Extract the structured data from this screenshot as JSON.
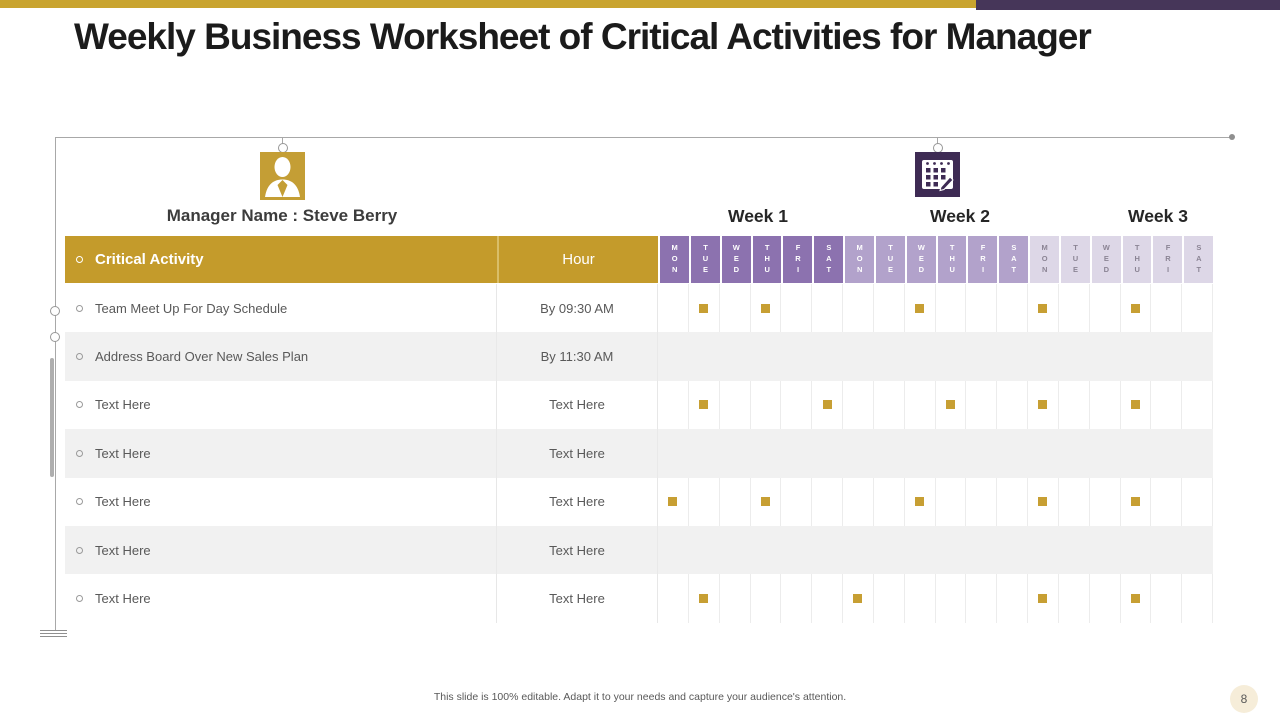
{
  "title": "Weekly Business Worksheet of Critical Activities for Manager",
  "manager": {
    "label": "Manager Name : Steve Berry",
    "icon": "person-icon"
  },
  "schedule_icon": "calendar-icon",
  "weeks": [
    "Week 1",
    "Week 2",
    "Week 3"
  ],
  "days": [
    "MON",
    "TUE",
    "WED",
    "THU",
    "FRI",
    "SAT"
  ],
  "table": {
    "columns": {
      "activity": "Critical Activity",
      "hour": "Hour"
    },
    "rows": [
      {
        "activity": "Team Meet Up For Day Schedule",
        "hour": "By 09:30 AM",
        "marks": [
          {
            "week": 1,
            "day": "TUE"
          },
          {
            "week": 1,
            "day": "THU"
          },
          {
            "week": 2,
            "day": "WED"
          },
          {
            "week": 3,
            "day": "MON"
          },
          {
            "week": 3,
            "day": "THU"
          }
        ]
      },
      {
        "activity": "Address Board Over New Sales Plan",
        "hour": "By 11:30 AM",
        "marks": []
      },
      {
        "activity": "Text Here",
        "hour": "Text Here",
        "marks": [
          {
            "week": 1,
            "day": "TUE"
          },
          {
            "week": 1,
            "day": "SAT"
          },
          {
            "week": 2,
            "day": "THU"
          },
          {
            "week": 3,
            "day": "MON"
          },
          {
            "week": 3,
            "day": "THU"
          }
        ]
      },
      {
        "activity": "Text Here",
        "hour": "Text Here",
        "marks": []
      },
      {
        "activity": "Text Here",
        "hour": "Text Here",
        "marks": [
          {
            "week": 1,
            "day": "MON"
          },
          {
            "week": 1,
            "day": "THU"
          },
          {
            "week": 2,
            "day": "WED"
          },
          {
            "week": 3,
            "day": "MON"
          },
          {
            "week": 3,
            "day": "THU"
          }
        ]
      },
      {
        "activity": "Text Here",
        "hour": "Text Here",
        "marks": []
      },
      {
        "activity": "Text Here",
        "hour": "Text Here",
        "marks": [
          {
            "week": 1,
            "day": "TUE"
          },
          {
            "week": 2,
            "day": "MON"
          },
          {
            "week": 3,
            "day": "MON"
          },
          {
            "week": 3,
            "day": "THU"
          }
        ]
      }
    ]
  },
  "footer": {
    "note": "This slide is 100% editable. Adapt it to your needs and capture your audience's attention.",
    "page_number": "8"
  },
  "icons": {
    "manager": "person-icon",
    "schedule": "calendar-icon",
    "row_bullet": "circle-outline-icon",
    "presence_mark": "filled-square"
  },
  "colors": {
    "gold_bar": "#C9A42F",
    "gold_header": "#C49B2B",
    "gold_icon": "#C49E35",
    "marker": "#C79F33",
    "purple_bar": "#463659",
    "purple_icon": "#3E2B54",
    "week1": "#8C72AF",
    "week2": "#B2A2CB",
    "week3": "#DDD7E7",
    "week3_text": "#8B8494",
    "row_alt": "#F1F1F1",
    "text_body": "#595959",
    "badge_bg": "#F6EDD9",
    "guide": "#A8A8A8"
  }
}
